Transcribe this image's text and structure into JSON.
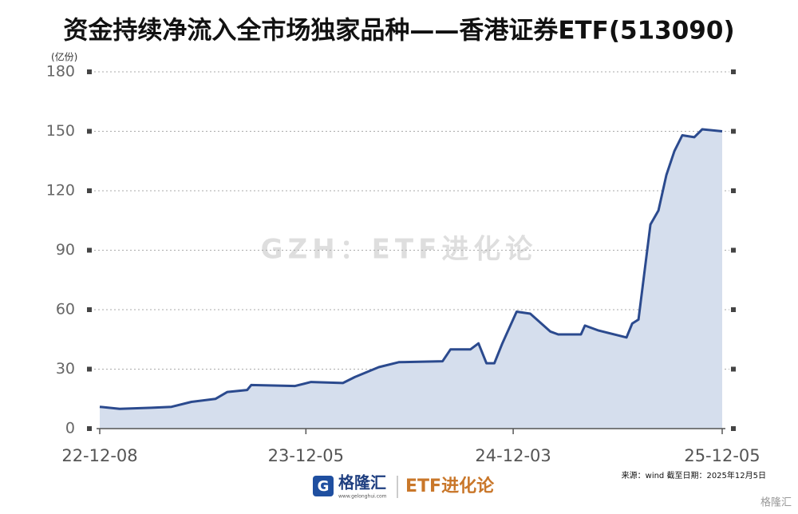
{
  "chart_data": {
    "type": "area",
    "title": "资金持续净流入全市场独家品种——香港证券ETF(513090)",
    "unit": "(亿份)",
    "watermark": "GZH：ETF进化论",
    "source": "来源：wind 截至日期：2025年12月5日",
    "brand": "ETF进化论",
    "logo_text": "格隆汇",
    "logo_url": "www.gelonghui.com",
    "corner_mark": "格隆汇",
    "color": "#2b4a8e",
    "fill": "#d5deed",
    "grid": true,
    "x": [
      "22-12-08",
      "23-01-12",
      "23-03-09",
      "23-04-13",
      "23-05-18",
      "23-06-29",
      "23-07-20",
      "23-08-24",
      "23-08-31",
      "23-11-16",
      "23-12-14",
      "24-02-08",
      "24-02-29",
      "24-04-11",
      "24-05-16",
      "24-08-01",
      "24-08-15",
      "24-09-19",
      "24-10-03",
      "24-10-17",
      "24-10-31",
      "24-11-14",
      "24-12-09",
      "25-01-02",
      "25-02-06",
      "25-02-20",
      "25-04-01",
      "25-04-08",
      "25-05-02",
      "25-06-06",
      "25-06-20",
      "25-06-30",
      "25-07-11",
      "25-08-01",
      "25-08-15",
      "25-08-29",
      "25-09-12",
      "25-09-26",
      "25-10-17",
      "25-10-31",
      "25-12-05"
    ],
    "values": [
      11,
      10,
      10.5,
      11,
      13.5,
      15,
      18.5,
      19.5,
      22,
      21.5,
      23.5,
      23,
      26,
      31,
      33.5,
      34,
      40,
      40,
      43,
      33,
      33,
      43,
      59,
      58,
      49,
      47.5,
      47.5,
      52,
      49.5,
      47,
      46,
      53,
      55,
      103,
      110,
      128,
      140,
      148,
      147,
      151,
      150
    ],
    "xlim": [
      "22-12-08",
      "25-12-05"
    ],
    "xticks": [
      "22-12-08",
      "23-12-05",
      "24-12-03",
      "25-12-05"
    ],
    "ylim": [
      0,
      180
    ],
    "yticks": [
      0,
      30,
      60,
      90,
      120,
      150,
      180
    ]
  }
}
